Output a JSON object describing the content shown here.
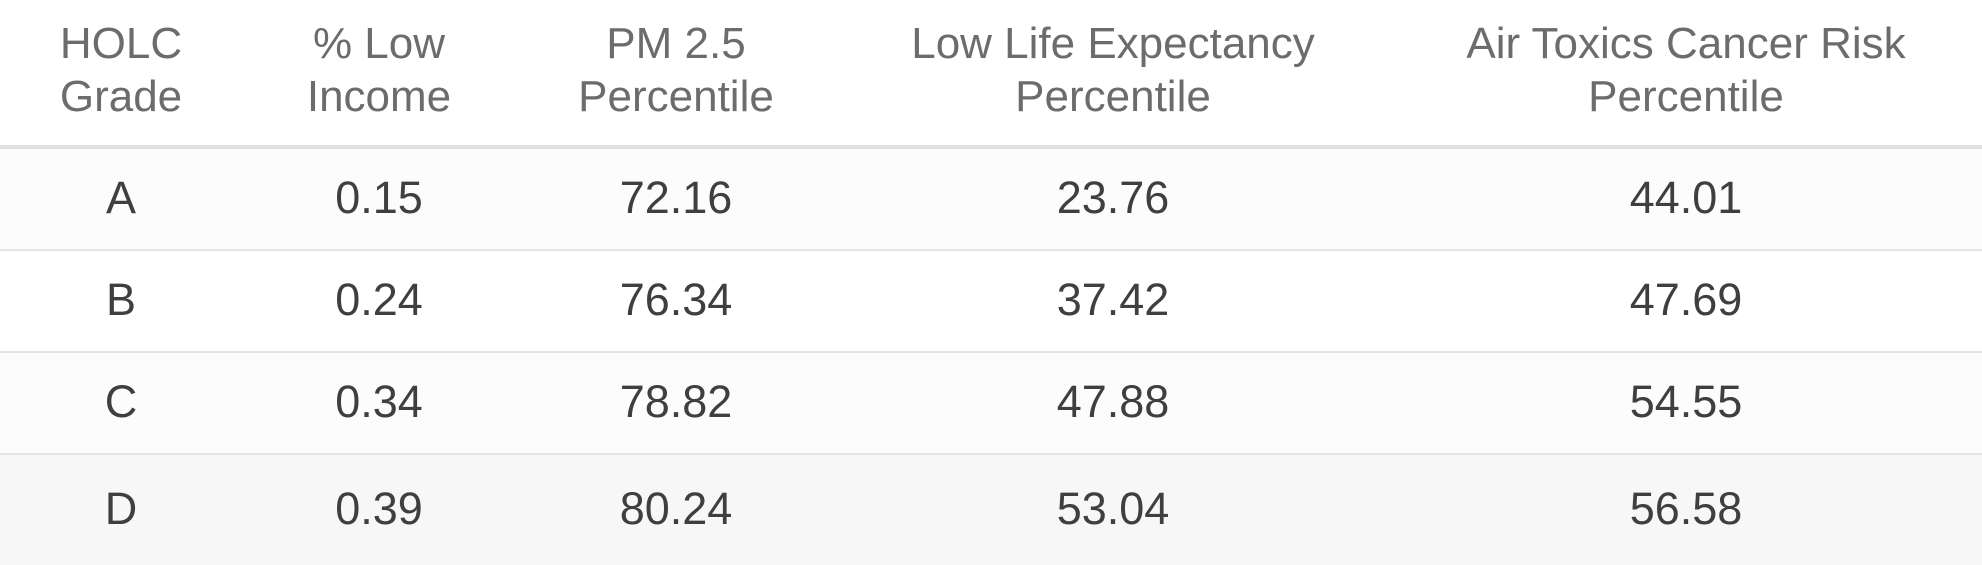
{
  "table": {
    "headers": [
      "HOLC\nGrade",
      "% Low\nIncome",
      "PM 2.5\nPercentile",
      "Low Life Expectancy\nPercentile",
      "Air Toxics Cancer Risk\nPercentile"
    ],
    "rows": [
      [
        "A",
        "0.15",
        "72.16",
        "23.76",
        "44.01"
      ],
      [
        "B",
        "0.24",
        "76.34",
        "37.42",
        "47.69"
      ],
      [
        "C",
        "0.34",
        "78.82",
        "47.88",
        "54.55"
      ],
      [
        "D",
        "0.39",
        "80.24",
        "53.04",
        "56.58"
      ]
    ]
  }
}
